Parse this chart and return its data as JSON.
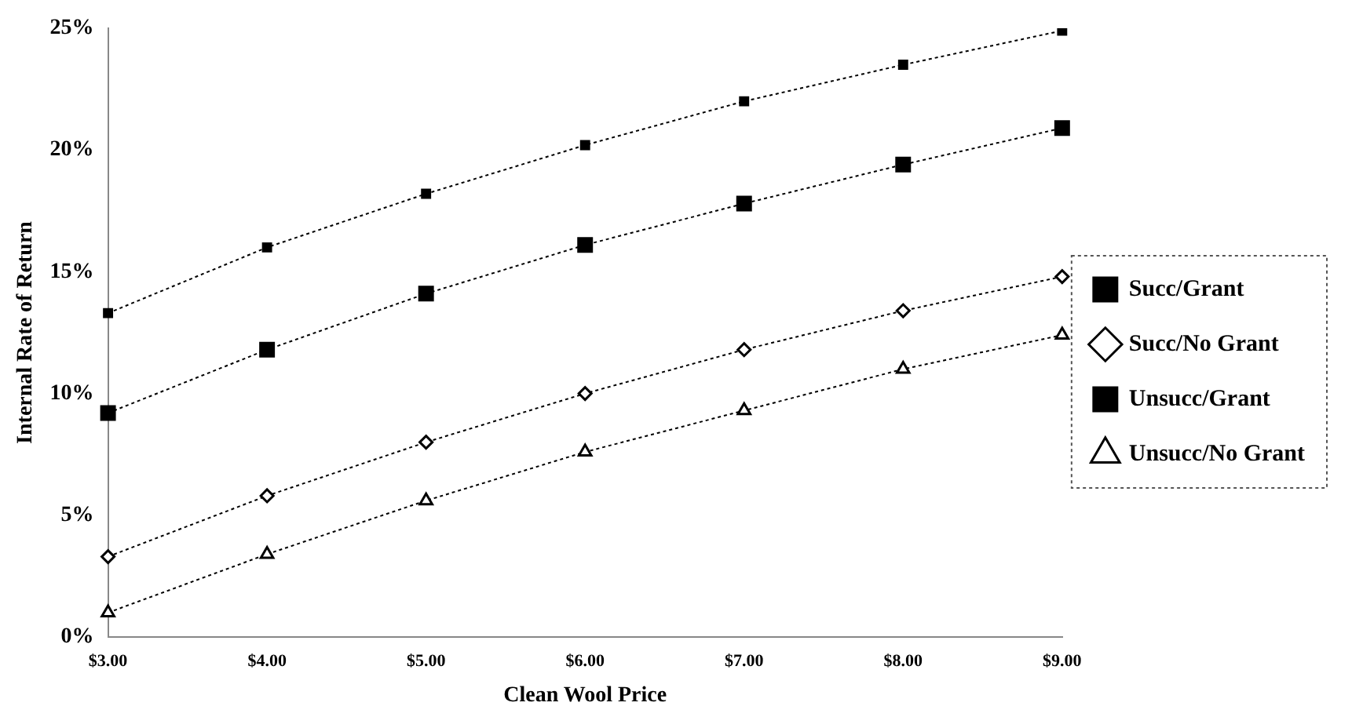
{
  "chart_data": {
    "type": "line",
    "xlabel": "Clean Wool Price",
    "ylabel": "Internal Rate of Return",
    "categories": [
      "$3.00",
      "$4.00",
      "$5.00",
      "$6.00",
      "$7.00",
      "$8.00",
      "$9.00"
    ],
    "series": [
      {
        "name": "Succ/Grant",
        "color": "#000000",
        "marker": "square",
        "values": [
          13.3,
          16.0,
          18.2,
          20.2,
          22.0,
          23.5,
          24.9
        ]
      },
      {
        "name": "Succ/No Grant",
        "color": "#000000",
        "marker": "diamond",
        "values": [
          3.3,
          5.8,
          8.0,
          10.0,
          11.8,
          13.4,
          14.8
        ]
      },
      {
        "name": "Unsucc/Grant",
        "color": "#000000",
        "marker": "square",
        "values": [
          9.2,
          11.8,
          14.1,
          16.1,
          17.8,
          19.4,
          20.9
        ]
      },
      {
        "name": "Unsucc/No Grant",
        "color": "#000000",
        "marker": "triangle",
        "values": [
          1.0,
          3.4,
          5.6,
          7.6,
          9.3,
          11.0,
          12.4
        ]
      }
    ],
    "ylim": [
      0,
      25
    ],
    "yticks": [
      {
        "value": 0,
        "label": "0%"
      },
      {
        "value": 5,
        "label": "5%"
      },
      {
        "value": 10,
        "label": "10%"
      },
      {
        "value": 15,
        "label": "15%"
      },
      {
        "value": 20,
        "label": "20%"
      },
      {
        "value": 25,
        "label": "25%"
      }
    ],
    "grid": false,
    "legend": "right",
    "line_style": "dotted"
  }
}
